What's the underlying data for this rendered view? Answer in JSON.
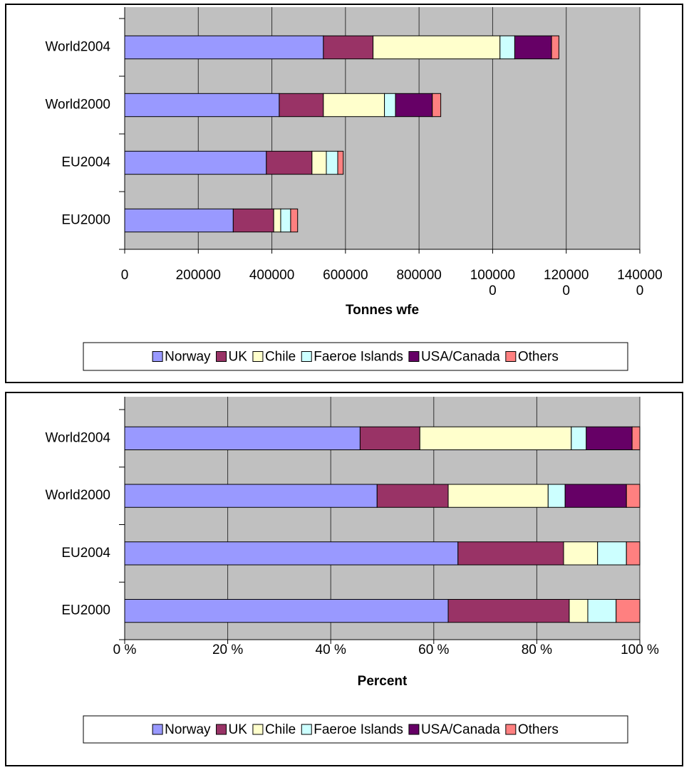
{
  "chart_data": [
    {
      "type": "bar",
      "orientation": "horizontal",
      "stacked": true,
      "xlabel": "Tonnes wfe",
      "categories": [
        "World2004",
        "World2000",
        "EU2004",
        "EU2000"
      ],
      "series": [
        {
          "name": "Norway",
          "color": "#9999ff",
          "values": [
            540000,
            420000,
            385000,
            295000
          ]
        },
        {
          "name": "UK",
          "color": "#993366",
          "values": [
            135000,
            120000,
            124000,
            110000
          ]
        },
        {
          "name": "Chile",
          "color": "#ffffcc",
          "values": [
            345000,
            166000,
            39000,
            19000
          ]
        },
        {
          "name": "Faeroe Islands",
          "color": "#ccffff",
          "values": [
            40000,
            30000,
            31000,
            27000
          ]
        },
        {
          "name": "USA/Canada",
          "color": "#660066",
          "values": [
            100000,
            100000,
            0,
            0
          ]
        },
        {
          "name": "Others",
          "color": "#ff8080",
          "values": [
            20000,
            23000,
            15000,
            19000
          ]
        }
      ],
      "xlim": [
        0,
        1400000
      ],
      "xticks": [
        0,
        200000,
        400000,
        600000,
        800000,
        1000000,
        1200000,
        1400000
      ],
      "grid": true,
      "legend": "bottom"
    },
    {
      "type": "bar",
      "orientation": "horizontal",
      "stacked": true,
      "xlabel": "Percent",
      "categories": [
        "World2004",
        "World2000",
        "EU2004",
        "EU2000"
      ],
      "series": [
        {
          "name": "Norway",
          "color": "#9999ff",
          "values": [
            45.7,
            49.0,
            64.7,
            62.8
          ]
        },
        {
          "name": "UK",
          "color": "#993366",
          "values": [
            11.6,
            13.8,
            20.5,
            23.5
          ]
        },
        {
          "name": "Chile",
          "color": "#ffffcc",
          "values": [
            29.4,
            19.4,
            6.6,
            3.6
          ]
        },
        {
          "name": "Faeroe Islands",
          "color": "#ccffff",
          "values": [
            2.9,
            3.3,
            5.6,
            5.5
          ]
        },
        {
          "name": "USA/Canada",
          "color": "#660066",
          "values": [
            8.9,
            11.9,
            0,
            0
          ]
        },
        {
          "name": "Others",
          "color": "#ff8080",
          "values": [
            1.5,
            2.6,
            2.6,
            4.6
          ]
        }
      ],
      "xlim": [
        0,
        100
      ],
      "xticks": [
        {
          "value": 0,
          "label": "0 %"
        },
        {
          "value": 20,
          "label": "20 %"
        },
        {
          "value": 40,
          "label": "40 %"
        },
        {
          "value": 60,
          "label": "60 %"
        },
        {
          "value": 80,
          "label": "80 %"
        },
        {
          "value": 100,
          "label": "100 %"
        }
      ],
      "grid": true,
      "legend": "bottom"
    }
  ]
}
